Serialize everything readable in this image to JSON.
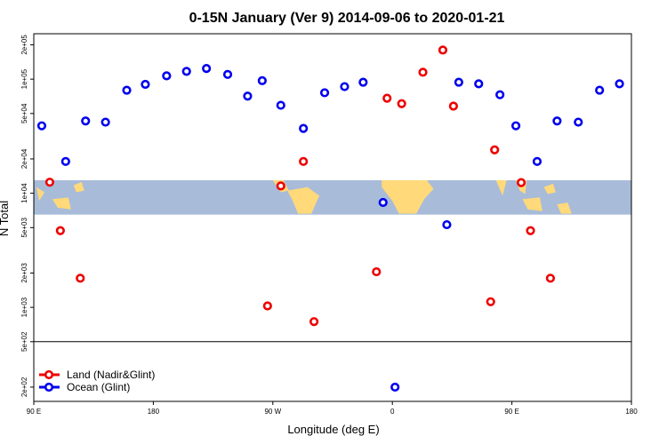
{
  "chart_data": {
    "type": "scatter",
    "title": "0-15N January (Ver 9)   2014-09-06 to 2020-01-21",
    "xlabel": "Longitude (deg E)",
    "ylabel": "N Total",
    "x_ticks": [
      {
        "value": 90,
        "label": "90 E"
      },
      {
        "value": 180,
        "label": "180"
      },
      {
        "value": 270,
        "label": "90 W"
      },
      {
        "value": 360,
        "label": "0"
      },
      {
        "value": 450,
        "label": "90 E"
      },
      {
        "value": 540,
        "label": "180"
      }
    ],
    "y_ticks": [
      {
        "value": 200,
        "label": "2e+02"
      },
      {
        "value": 500,
        "label": "5e+02"
      },
      {
        "value": 1000,
        "label": "1e+03"
      },
      {
        "value": 2000,
        "label": "2e+03"
      },
      {
        "value": 5000,
        "label": "5e+03"
      },
      {
        "value": 10000,
        "label": "1e+04"
      },
      {
        "value": 20000,
        "label": "2e+04"
      },
      {
        "value": 50000,
        "label": "5e+04"
      },
      {
        "value": 100000,
        "label": "1e+05"
      },
      {
        "value": 200000,
        "label": "2e+05"
      }
    ],
    "xlim": [
      90,
      540
    ],
    "ylim": [
      150,
      250000
    ],
    "y_scale": "log",
    "break_line_at": 500,
    "map_band_range": [
      6500,
      13000
    ],
    "legend_position": "bottom-left",
    "series": [
      {
        "name": "Land (Nadir&Glint)",
        "color": "#ee0000",
        "points": [
          {
            "x": 102,
            "y": 12500
          },
          {
            "x": 110,
            "y": 4700
          },
          {
            "x": 125,
            "y": 1800
          },
          {
            "x": 266,
            "y": 1030
          },
          {
            "x": 276,
            "y": 11600
          },
          {
            "x": 293,
            "y": 19000
          },
          {
            "x": 301,
            "y": 750
          },
          {
            "x": 348,
            "y": 2050
          },
          {
            "x": 356,
            "y": 68000
          },
          {
            "x": 367,
            "y": 61000
          },
          {
            "x": 383,
            "y": 115000
          },
          {
            "x": 398,
            "y": 180000
          },
          {
            "x": 406,
            "y": 58000
          },
          {
            "x": 434,
            "y": 1120
          },
          {
            "x": 437,
            "y": 24000
          },
          {
            "x": 457,
            "y": 12400
          },
          {
            "x": 464,
            "y": 4700
          },
          {
            "x": 479,
            "y": 1800
          }
        ]
      },
      {
        "name": "Ocean (Glint)",
        "color": "#0000ee",
        "points": [
          {
            "x": 96,
            "y": 39000
          },
          {
            "x": 114,
            "y": 19000
          },
          {
            "x": 129,
            "y": 43000
          },
          {
            "x": 144,
            "y": 42000
          },
          {
            "x": 160,
            "y": 80000
          },
          {
            "x": 174,
            "y": 90000
          },
          {
            "x": 190,
            "y": 107000
          },
          {
            "x": 205,
            "y": 117000
          },
          {
            "x": 220,
            "y": 124000
          },
          {
            "x": 236,
            "y": 110000
          },
          {
            "x": 251,
            "y": 71000
          },
          {
            "x": 262,
            "y": 97000
          },
          {
            "x": 276,
            "y": 59000
          },
          {
            "x": 293,
            "y": 37000
          },
          {
            "x": 309,
            "y": 76000
          },
          {
            "x": 324,
            "y": 86000
          },
          {
            "x": 338,
            "y": 94000
          },
          {
            "x": 353,
            "y": 8300
          },
          {
            "x": 362,
            "y": 200
          },
          {
            "x": 401,
            "y": 5300
          },
          {
            "x": 410,
            "y": 94000
          },
          {
            "x": 425,
            "y": 91000
          },
          {
            "x": 441,
            "y": 73000
          },
          {
            "x": 453,
            "y": 39000
          },
          {
            "x": 469,
            "y": 19000
          },
          {
            "x": 484,
            "y": 43000
          },
          {
            "x": 500,
            "y": 42000
          },
          {
            "x": 516,
            "y": 80000
          },
          {
            "x": 531,
            "y": 91000
          }
        ]
      }
    ]
  }
}
